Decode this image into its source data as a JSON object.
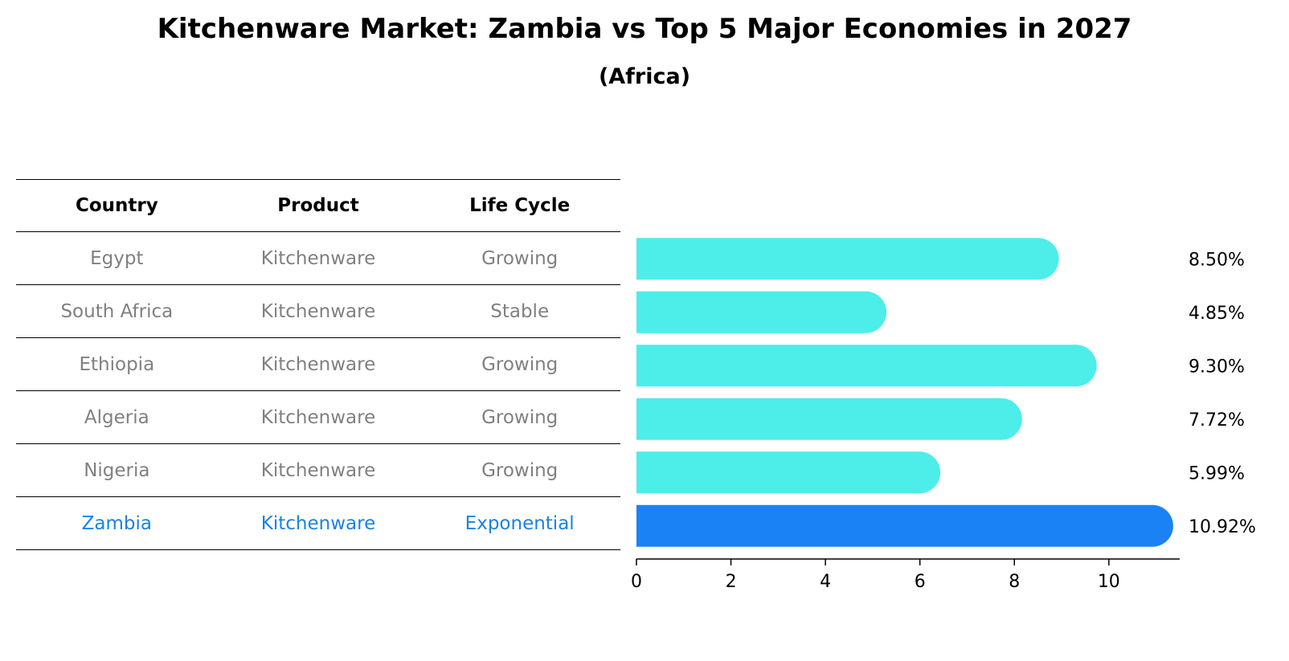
{
  "title": "Kitchenware Market: Zambia vs Top 5 Major Economies in 2027",
  "subtitle": "(Africa)",
  "table": {
    "headers": [
      "Country",
      "Product",
      "Life Cycle"
    ],
    "rows": [
      {
        "country": "Egypt",
        "product": "Kitchenware",
        "life_cycle": "Growing"
      },
      {
        "country": "South Africa",
        "product": "Kitchenware",
        "life_cycle": "Stable"
      },
      {
        "country": "Ethiopia",
        "product": "Kitchenware",
        "life_cycle": "Growing"
      },
      {
        "country": "Algeria",
        "product": "Kitchenware",
        "life_cycle": "Growing"
      },
      {
        "country": "Nigeria",
        "product": "Kitchenware",
        "life_cycle": "Growing"
      },
      {
        "country": "Zambia",
        "product": "Kitchenware",
        "life_cycle": "Exponential"
      }
    ]
  },
  "chart_data": {
    "type": "bar",
    "orientation": "horizontal",
    "title": "Kitchenware Market: Zambia vs Top 5 Major Economies in 2027",
    "subtitle": "(Africa)",
    "categories": [
      "Egypt",
      "South Africa",
      "Ethiopia",
      "Algeria",
      "Nigeria",
      "Zambia"
    ],
    "values": [
      8.5,
      4.85,
      9.3,
      7.72,
      5.99,
      10.92
    ],
    "value_labels": [
      "8.50%",
      "4.85%",
      "9.30%",
      "7.72%",
      "5.99%",
      "10.92%"
    ],
    "highlight": "Zambia",
    "xlim": [
      0,
      11.5
    ],
    "xticks": [
      0,
      2,
      4,
      6,
      8,
      10
    ],
    "xlabel": "",
    "ylabel": "",
    "colors": {
      "default": "#4dedea",
      "highlight": "#1a82f5"
    }
  }
}
